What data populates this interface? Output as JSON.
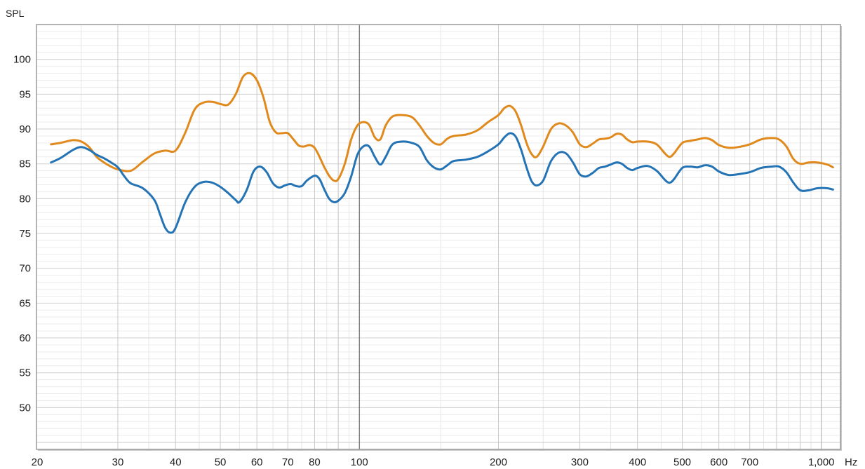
{
  "chart_data": {
    "type": "line",
    "title": "",
    "ylabel": "SPL",
    "xlabel": "Hz",
    "x_scale": "log",
    "xlim": [
      20,
      1100
    ],
    "ylim": [
      44,
      105
    ],
    "grid": true,
    "y_ticks": [
      50,
      55,
      60,
      65,
      70,
      75,
      80,
      85,
      90,
      95,
      100
    ],
    "x_ticks": [
      {
        "value": 20,
        "label": "20"
      },
      {
        "value": 30,
        "label": "30"
      },
      {
        "value": 40,
        "label": "40"
      },
      {
        "value": 50,
        "label": "50"
      },
      {
        "value": 60,
        "label": "60"
      },
      {
        "value": 70,
        "label": "70"
      },
      {
        "value": 80,
        "label": "80"
      },
      {
        "value": 100,
        "label": "100"
      },
      {
        "value": 200,
        "label": "200"
      },
      {
        "value": 300,
        "label": "300"
      },
      {
        "value": 400,
        "label": "400"
      },
      {
        "value": 500,
        "label": "500"
      },
      {
        "value": 600,
        "label": "600"
      },
      {
        "value": 700,
        "label": "700"
      },
      {
        "value": 1000,
        "label": "1,000"
      }
    ],
    "series": [
      {
        "color": "#e08a1e",
        "points": [
          [
            21.5,
            87.8
          ],
          [
            22.5,
            88.0
          ],
          [
            24,
            88.4
          ],
          [
            25,
            88.2
          ],
          [
            26,
            87.4
          ],
          [
            27,
            86.0
          ],
          [
            28,
            85.2
          ],
          [
            29,
            84.6
          ],
          [
            30,
            84.2
          ],
          [
            32,
            84.0
          ],
          [
            34,
            85.3
          ],
          [
            36,
            86.5
          ],
          [
            38,
            86.9
          ],
          [
            40,
            86.9
          ],
          [
            42,
            89.5
          ],
          [
            44,
            92.8
          ],
          [
            46,
            93.8
          ],
          [
            48,
            93.9
          ],
          [
            50,
            93.6
          ],
          [
            52,
            93.5
          ],
          [
            54,
            95.0
          ],
          [
            56,
            97.5
          ],
          [
            58,
            98.0
          ],
          [
            60,
            97.0
          ],
          [
            62,
            94.5
          ],
          [
            64,
            91.0
          ],
          [
            66,
            89.5
          ],
          [
            68,
            89.4
          ],
          [
            70,
            89.4
          ],
          [
            72,
            88.5
          ],
          [
            74,
            87.6
          ],
          [
            76,
            87.5
          ],
          [
            78,
            87.7
          ],
          [
            80,
            87.3
          ],
          [
            82,
            86.0
          ],
          [
            84,
            84.5
          ],
          [
            86,
            83.3
          ],
          [
            88,
            82.6
          ],
          [
            90,
            82.8
          ],
          [
            93,
            85.0
          ],
          [
            96,
            88.5
          ],
          [
            99,
            90.5
          ],
          [
            102,
            91.0
          ],
          [
            105,
            90.6
          ],
          [
            108,
            88.8
          ],
          [
            111,
            88.5
          ],
          [
            114,
            90.5
          ],
          [
            118,
            91.8
          ],
          [
            124,
            92.0
          ],
          [
            130,
            91.7
          ],
          [
            135,
            90.5
          ],
          [
            140,
            89.0
          ],
          [
            145,
            88.0
          ],
          [
            150,
            87.8
          ],
          [
            155,
            88.6
          ],
          [
            160,
            89.0
          ],
          [
            170,
            89.2
          ],
          [
            180,
            89.8
          ],
          [
            190,
            91.0
          ],
          [
            200,
            92.0
          ],
          [
            206,
            93.0
          ],
          [
            212,
            93.3
          ],
          [
            218,
            92.5
          ],
          [
            224,
            90.5
          ],
          [
            230,
            88.0
          ],
          [
            236,
            86.4
          ],
          [
            242,
            86.0
          ],
          [
            250,
            87.5
          ],
          [
            260,
            90.0
          ],
          [
            270,
            90.8
          ],
          [
            280,
            90.5
          ],
          [
            290,
            89.5
          ],
          [
            300,
            87.8
          ],
          [
            310,
            87.4
          ],
          [
            320,
            87.9
          ],
          [
            330,
            88.5
          ],
          [
            340,
            88.6
          ],
          [
            350,
            88.8
          ],
          [
            360,
            89.3
          ],
          [
            370,
            89.2
          ],
          [
            380,
            88.5
          ],
          [
            390,
            88.1
          ],
          [
            400,
            88.2
          ],
          [
            420,
            88.2
          ],
          [
            440,
            87.8
          ],
          [
            460,
            86.4
          ],
          [
            470,
            86.0
          ],
          [
            480,
            86.5
          ],
          [
            500,
            88.0
          ],
          [
            520,
            88.3
          ],
          [
            540,
            88.5
          ],
          [
            560,
            88.7
          ],
          [
            580,
            88.4
          ],
          [
            600,
            87.7
          ],
          [
            630,
            87.3
          ],
          [
            660,
            87.4
          ],
          [
            700,
            87.8
          ],
          [
            740,
            88.5
          ],
          [
            780,
            88.7
          ],
          [
            810,
            88.5
          ],
          [
            840,
            87.5
          ],
          [
            870,
            85.7
          ],
          [
            900,
            85.0
          ],
          [
            940,
            85.2
          ],
          [
            980,
            85.2
          ],
          [
            1030,
            84.9
          ],
          [
            1060,
            84.5
          ]
        ]
      },
      {
        "color": "#2473b5",
        "points": [
          [
            21.5,
            85.2
          ],
          [
            22.5,
            85.8
          ],
          [
            24,
            87.0
          ],
          [
            25,
            87.4
          ],
          [
            26,
            87.0
          ],
          [
            27,
            86.3
          ],
          [
            28,
            85.8
          ],
          [
            29,
            85.2
          ],
          [
            30,
            84.5
          ],
          [
            31,
            83.2
          ],
          [
            32,
            82.2
          ],
          [
            34,
            81.5
          ],
          [
            36,
            79.8
          ],
          [
            37,
            77.8
          ],
          [
            38,
            75.8
          ],
          [
            39,
            75.1
          ],
          [
            40,
            75.8
          ],
          [
            42,
            79.5
          ],
          [
            44,
            81.7
          ],
          [
            46,
            82.4
          ],
          [
            48,
            82.3
          ],
          [
            50,
            81.7
          ],
          [
            52,
            80.8
          ],
          [
            54,
            79.8
          ],
          [
            55,
            79.5
          ],
          [
            57,
            81.2
          ],
          [
            59,
            83.9
          ],
          [
            61,
            84.6
          ],
          [
            63,
            83.8
          ],
          [
            65,
            82.2
          ],
          [
            67,
            81.6
          ],
          [
            69,
            81.9
          ],
          [
            71,
            82.1
          ],
          [
            73,
            81.8
          ],
          [
            75,
            81.8
          ],
          [
            77,
            82.6
          ],
          [
            80,
            83.3
          ],
          [
            82,
            82.8
          ],
          [
            84,
            81.3
          ],
          [
            86,
            80.0
          ],
          [
            88,
            79.5
          ],
          [
            90,
            79.7
          ],
          [
            93,
            80.8
          ],
          [
            96,
            83.2
          ],
          [
            99,
            86.3
          ],
          [
            102,
            87.5
          ],
          [
            105,
            87.5
          ],
          [
            108,
            86.0
          ],
          [
            111,
            84.9
          ],
          [
            114,
            86.0
          ],
          [
            118,
            87.8
          ],
          [
            124,
            88.2
          ],
          [
            130,
            88.0
          ],
          [
            135,
            87.4
          ],
          [
            140,
            85.5
          ],
          [
            145,
            84.5
          ],
          [
            150,
            84.2
          ],
          [
            155,
            84.8
          ],
          [
            160,
            85.4
          ],
          [
            170,
            85.6
          ],
          [
            180,
            86.0
          ],
          [
            190,
            86.8
          ],
          [
            200,
            87.8
          ],
          [
            206,
            88.8
          ],
          [
            212,
            89.4
          ],
          [
            218,
            88.9
          ],
          [
            224,
            87.0
          ],
          [
            230,
            84.5
          ],
          [
            236,
            82.5
          ],
          [
            242,
            81.9
          ],
          [
            250,
            82.6
          ],
          [
            260,
            85.4
          ],
          [
            270,
            86.6
          ],
          [
            280,
            86.5
          ],
          [
            290,
            85.2
          ],
          [
            300,
            83.5
          ],
          [
            310,
            83.2
          ],
          [
            320,
            83.7
          ],
          [
            330,
            84.4
          ],
          [
            340,
            84.6
          ],
          [
            350,
            84.9
          ],
          [
            360,
            85.2
          ],
          [
            370,
            85.0
          ],
          [
            380,
            84.4
          ],
          [
            390,
            84.1
          ],
          [
            400,
            84.4
          ],
          [
            420,
            84.7
          ],
          [
            440,
            84.0
          ],
          [
            460,
            82.6
          ],
          [
            470,
            82.3
          ],
          [
            480,
            82.8
          ],
          [
            500,
            84.4
          ],
          [
            520,
            84.6
          ],
          [
            540,
            84.5
          ],
          [
            560,
            84.8
          ],
          [
            580,
            84.6
          ],
          [
            600,
            83.9
          ],
          [
            630,
            83.4
          ],
          [
            660,
            83.5
          ],
          [
            700,
            83.8
          ],
          [
            740,
            84.4
          ],
          [
            780,
            84.6
          ],
          [
            810,
            84.6
          ],
          [
            840,
            83.8
          ],
          [
            870,
            82.3
          ],
          [
            900,
            81.2
          ],
          [
            940,
            81.2
          ],
          [
            980,
            81.5
          ],
          [
            1030,
            81.5
          ],
          [
            1060,
            81.3
          ]
        ]
      }
    ]
  }
}
